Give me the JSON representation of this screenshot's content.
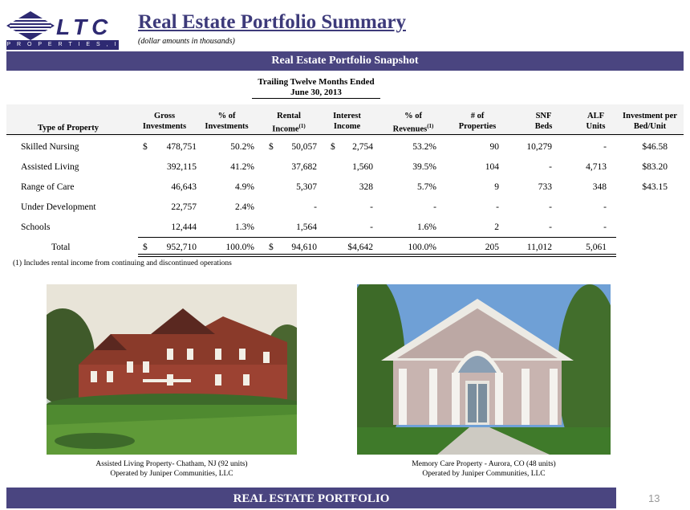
{
  "logo": {
    "wordmark": "LTC",
    "tagline": "P R O P E R T I E S , I N C"
  },
  "header": {
    "title": "Real Estate Portfolio Summary",
    "subtitle": "(dollar amounts in thousands)"
  },
  "banner": "Real Estate Portfolio Snapshot",
  "period": {
    "line1": "Trailing Twelve Months Ended",
    "line2": "June 30, 2013"
  },
  "columns": {
    "type": "Type of Property",
    "gross": [
      "Gross",
      "Investments"
    ],
    "pct_inv": [
      "% of",
      "Investments"
    ],
    "rental": [
      "Rental",
      "Income"
    ],
    "interest": [
      "Interest",
      "Income"
    ],
    "pct_rev": [
      "% of",
      "Revenues"
    ],
    "props": [
      "# of",
      "Properties"
    ],
    "snf": [
      "SNF",
      "Beds"
    ],
    "alf": [
      "ALF",
      "Units"
    ],
    "inv_bed": [
      "Investment per",
      "Bed/Unit"
    ],
    "footnote_ref": "(1)"
  },
  "rows": [
    {
      "type": "Skilled Nursing",
      "gross_dollar": "$",
      "gross": "478,751",
      "pct_inv": "50.2%",
      "rental_dollar": "$",
      "rental": "50,057",
      "interest_dollar": "$",
      "interest": "2,754",
      "pct_rev": "53.2%",
      "props": "90",
      "snf": "10,279",
      "alf": "-",
      "inv_bed": "$46.58"
    },
    {
      "type": "Assisted Living",
      "gross_dollar": "",
      "gross": "392,115",
      "pct_inv": "41.2%",
      "rental_dollar": "",
      "rental": "37,682",
      "interest_dollar": "",
      "interest": "1,560",
      "pct_rev": "39.5%",
      "props": "104",
      "snf": "-",
      "alf": "4,713",
      "inv_bed": "$83.20"
    },
    {
      "type": "Range of Care",
      "gross_dollar": "",
      "gross": "46,643",
      "pct_inv": "4.9%",
      "rental_dollar": "",
      "rental": "5,307",
      "interest_dollar": "",
      "interest": "328",
      "pct_rev": "5.7%",
      "props": "9",
      "snf": "733",
      "alf": "348",
      "inv_bed": "$43.15"
    },
    {
      "type": "Under Development",
      "gross_dollar": "",
      "gross": "22,757",
      "pct_inv": "2.4%",
      "rental_dollar": "",
      "rental": "-",
      "interest_dollar": "",
      "interest": "-",
      "pct_rev": "-",
      "props": "-",
      "snf": "-",
      "alf": "-",
      "inv_bed": ""
    },
    {
      "type": "Schools",
      "gross_dollar": "",
      "gross": "12,444",
      "pct_inv": "1.3%",
      "rental_dollar": "",
      "rental": "1,564",
      "interest_dollar": "",
      "interest": "-",
      "pct_rev": "1.6%",
      "props": "2",
      "snf": "-",
      "alf": "-",
      "inv_bed": ""
    }
  ],
  "total": {
    "label": "Total",
    "gross_dollar": "$",
    "gross": "952,710",
    "pct_inv": "100.0%",
    "rental_dollar": "$",
    "rental": "94,610",
    "interest": "$4,642",
    "pct_rev": "100.0%",
    "props": "205",
    "snf": "11,012",
    "alf": "5,061"
  },
  "footnote": "(1)    Includes rental income from continuing and discontinued operations",
  "photos": [
    {
      "caption1": "Assisted Living Property- Chatham, NJ  (92 units)",
      "caption2": "Operated by Juniper Communities, LLC"
    },
    {
      "caption1": "Memory Care Property - Aurora, CO  (48 units)",
      "caption2": "Operated by Juniper Communities, LLC"
    }
  ],
  "footer": {
    "label": "REAL ESTATE PORTFOLIO",
    "page": "13"
  },
  "colors": {
    "brand": "#4a4580",
    "logo": "#2e2a72"
  }
}
